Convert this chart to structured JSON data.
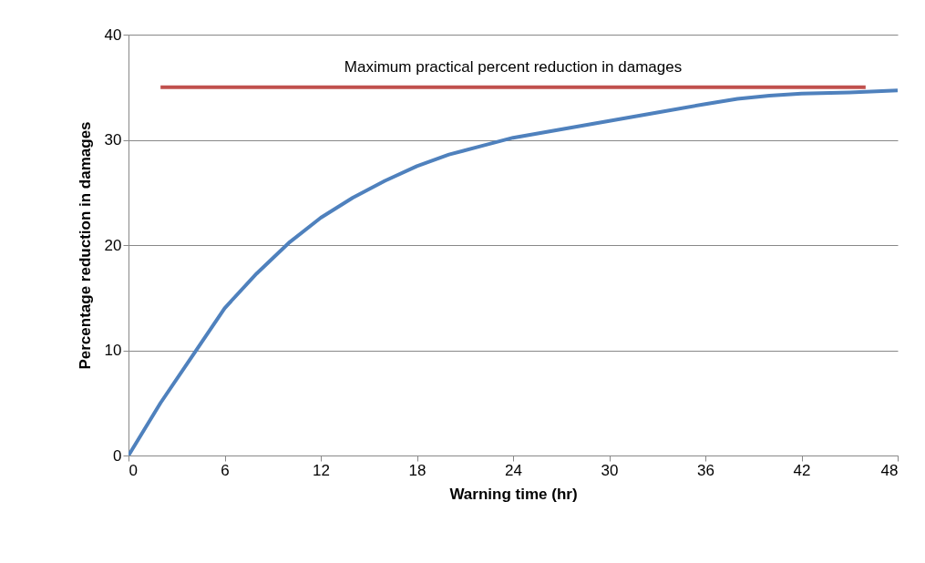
{
  "chart_data": {
    "type": "line",
    "xlabel": "Warning time (hr)",
    "ylabel": "Percentage reduction in damages",
    "xlim": [
      0,
      48
    ],
    "xticks": [
      0,
      6,
      12,
      18,
      24,
      30,
      36,
      42,
      48
    ],
    "ylim": [
      0,
      40
    ],
    "yticks": [
      0,
      10,
      20,
      30,
      40
    ],
    "grid": "y",
    "marker": "none",
    "line_style": "solid",
    "series": [
      {
        "color": "#4f81bd",
        "x": [
          0,
          2,
          4,
          6,
          8,
          10,
          12,
          14,
          16,
          18,
          20,
          22,
          24,
          27,
          30,
          33,
          36,
          38,
          40,
          42,
          45,
          48
        ],
        "values": [
          0,
          5,
          9.5,
          14,
          17.3,
          20.2,
          22.6,
          24.5,
          26.1,
          27.5,
          28.6,
          29.4,
          30.2,
          31,
          31.8,
          32.6,
          33.4,
          33.9,
          34.2,
          34.4,
          34.5,
          34.7
        ]
      },
      {
        "name": "Maximum practical percent reduction in damages",
        "color": "#c0504d",
        "x": [
          2,
          46
        ],
        "values": [
          35,
          35
        ]
      }
    ]
  }
}
